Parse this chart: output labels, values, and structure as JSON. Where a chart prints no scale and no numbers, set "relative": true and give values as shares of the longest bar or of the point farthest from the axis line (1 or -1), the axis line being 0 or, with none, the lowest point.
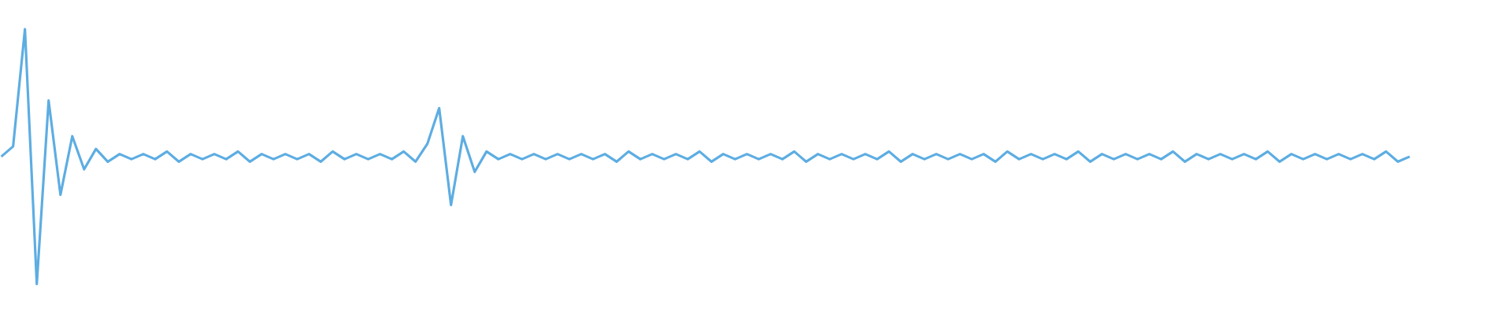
{
  "chart_data": {
    "type": "line",
    "relative": true,
    "categories": [
      null,
      null,
      null,
      null,
      null,
      null,
      null,
      null,
      null,
      null,
      null,
      null,
      null,
      null,
      null,
      null,
      null,
      null,
      null,
      null,
      null,
      null,
      null,
      null,
      null,
      null,
      null,
      null,
      null,
      null,
      null,
      null,
      null,
      null,
      null,
      null,
      null,
      null,
      null,
      null,
      null,
      null,
      null,
      null,
      null,
      null,
      null,
      null,
      null,
      null,
      null,
      null,
      null,
      null,
      null,
      null,
      null,
      null,
      null,
      null,
      null,
      null,
      null,
      null,
      null,
      null,
      null,
      null,
      null,
      null,
      null,
      null,
      null,
      null,
      null,
      null,
      null,
      null,
      null,
      null,
      null,
      null,
      null,
      null,
      null,
      null,
      null,
      null,
      null,
      null,
      null,
      null,
      null,
      null,
      null,
      null,
      null,
      null,
      null,
      null,
      null,
      null,
      null,
      null,
      null,
      null,
      null,
      null,
      null,
      null,
      null,
      null,
      null,
      null,
      null,
      null,
      null,
      null,
      null,
      null
    ],
    "series": [
      {
        "color": "#5dade2",
        "values": [
          0.5,
          0.54,
          1.0,
          0.0,
          0.72,
          0.35,
          0.58,
          0.45,
          0.53,
          0.48,
          0.51,
          0.49,
          0.51,
          0.49,
          0.52,
          0.48,
          0.51,
          0.49,
          0.51,
          0.49,
          0.52,
          0.48,
          0.51,
          0.49,
          0.51,
          0.49,
          0.51,
          0.48,
          0.52,
          0.49,
          0.51,
          0.49,
          0.51,
          0.49,
          0.52,
          0.48,
          0.55,
          0.69,
          0.31,
          0.58,
          0.44,
          0.52,
          0.49,
          0.51,
          0.49,
          0.51,
          0.49,
          0.51,
          0.49,
          0.51,
          0.49,
          0.51,
          0.48,
          0.52,
          0.49,
          0.51,
          0.49,
          0.51,
          0.49,
          0.52,
          0.48,
          0.51,
          0.49,
          0.51,
          0.49,
          0.51,
          0.49,
          0.52,
          0.48,
          0.51,
          0.49,
          0.51,
          0.49,
          0.51,
          0.49,
          0.52,
          0.48,
          0.51,
          0.49,
          0.51,
          0.49,
          0.51,
          0.49,
          0.51,
          0.48,
          0.52,
          0.49,
          0.51,
          0.49,
          0.51,
          0.49,
          0.52,
          0.48,
          0.51,
          0.49,
          0.51,
          0.49,
          0.51,
          0.49,
          0.52,
          0.48,
          0.51,
          0.49,
          0.51,
          0.49,
          0.51,
          0.49,
          0.52,
          0.48,
          0.51,
          0.49,
          0.51,
          0.49,
          0.51,
          0.49,
          0.51,
          0.49,
          0.52,
          0.48,
          0.5
        ]
      }
    ]
  }
}
